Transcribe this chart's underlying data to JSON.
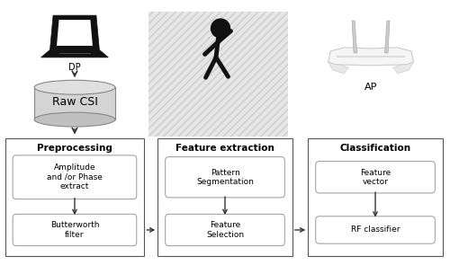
{
  "bg_color": "#ffffff",
  "fig_width": 5.0,
  "fig_height": 2.95,
  "dpi": 100,
  "preprocessing_title": "Preprocessing",
  "preprocessing_box1": "Amplitude\nand /or Phase\nextract",
  "preprocessing_box2": "Butterworth\nfilter",
  "feature_title": "Feature extraction",
  "feature_box1": "Pattern\nSegmentation",
  "feature_box2": "Feature\nSelection",
  "classification_title": "Classification",
  "classification_box1": "Feature\nvector",
  "classification_box2": "RF classifier",
  "dp_label": "DP",
  "ap_label": "AP",
  "rawcsi_label": "Raw CSI",
  "box_edge_color": "#999999",
  "section_edge_color": "#555555",
  "arrow_color": "#333333",
  "font_size_box": 6.5,
  "font_size_title": 7.5,
  "font_size_label": 7,
  "font_size_rawcsi": 9
}
